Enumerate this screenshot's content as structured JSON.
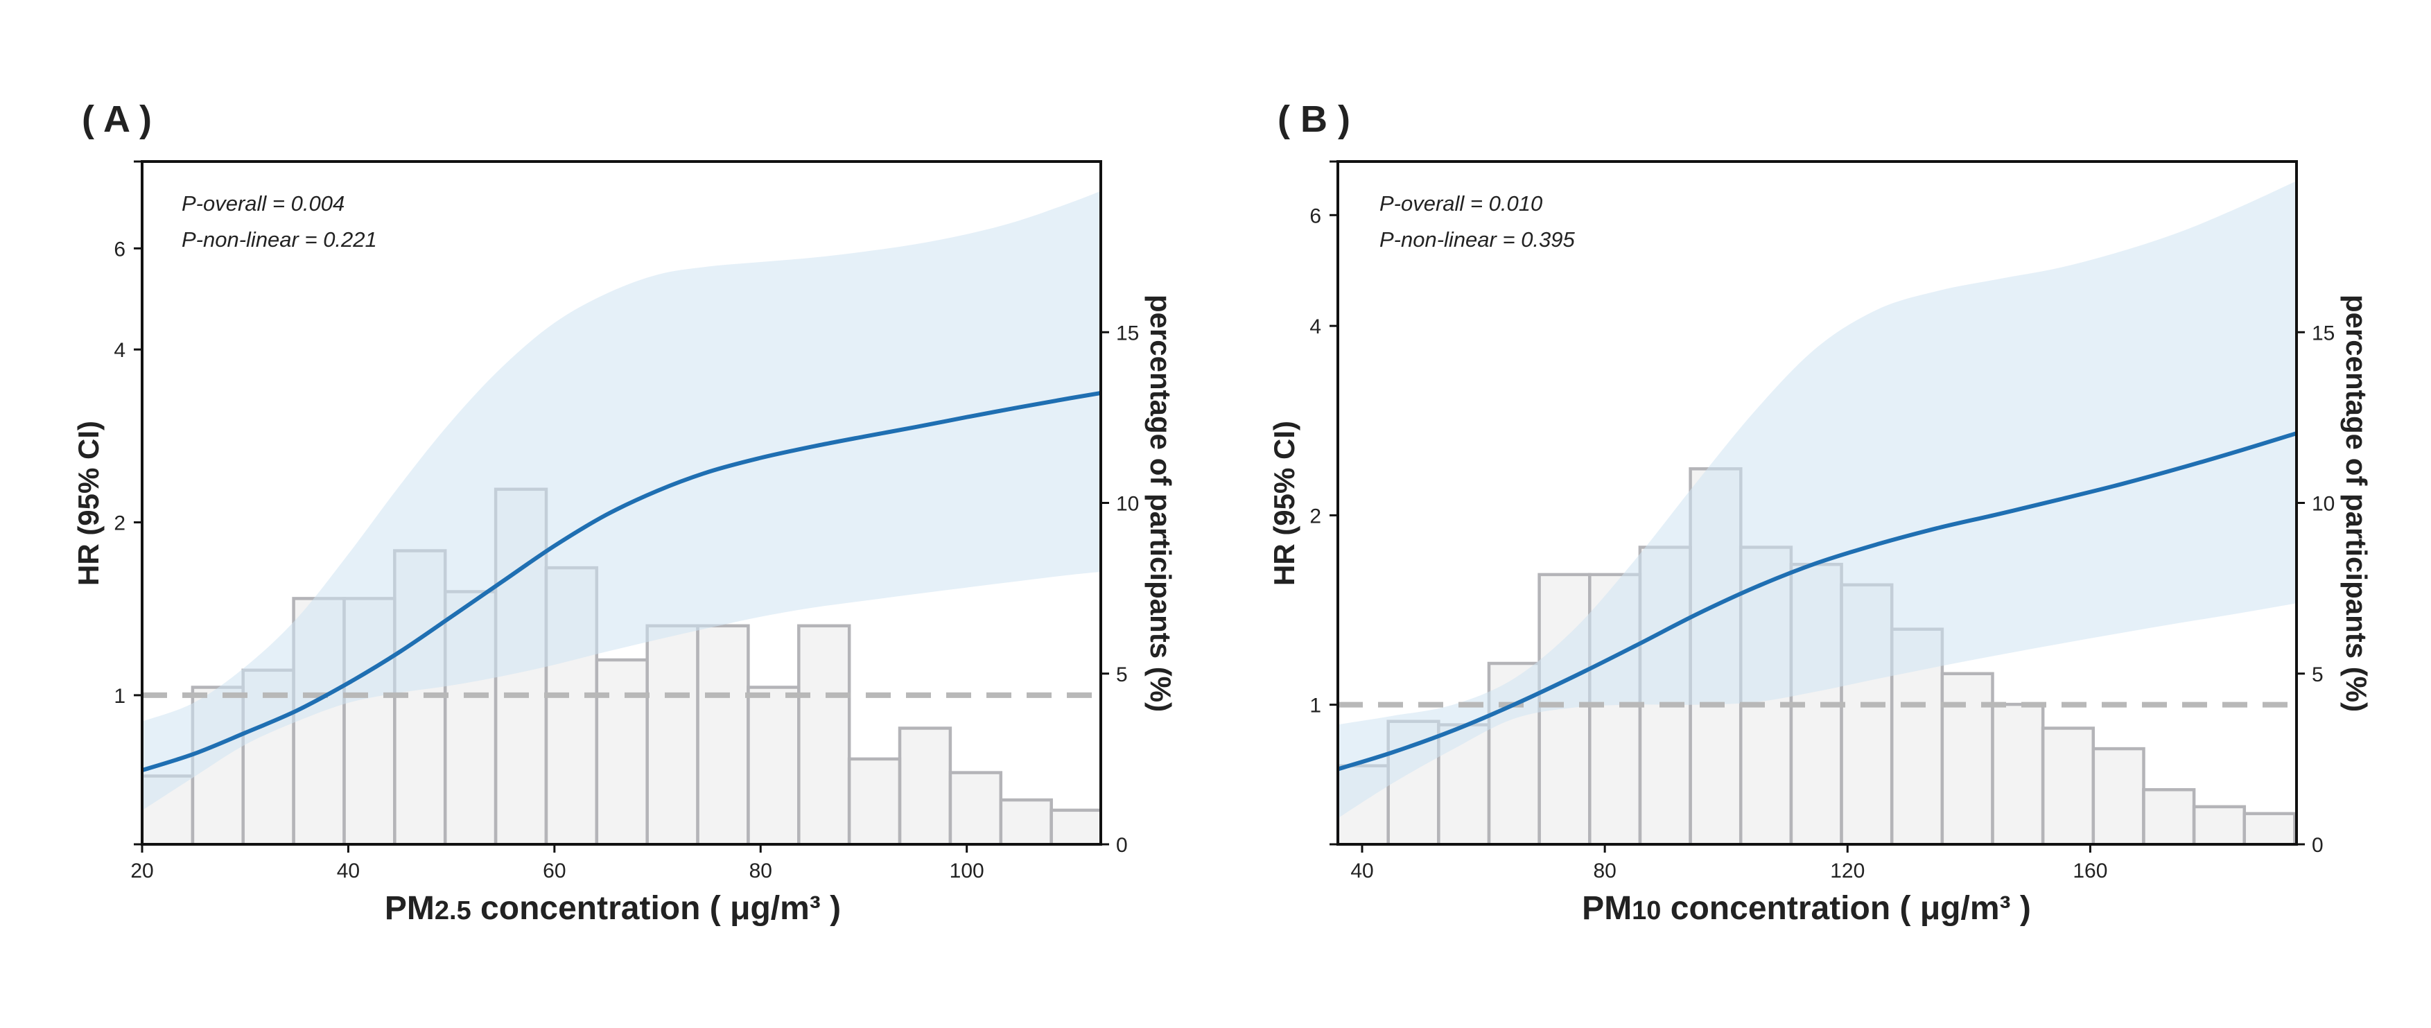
{
  "chart_data": [
    {
      "type": "line",
      "panel_label": "( A )",
      "title": "",
      "xlabel": {
        "main": "PM",
        "sub": "2.5",
        "rest": " concentration ( μg/m³ )"
      },
      "ylabel": "HR (95% CI)",
      "y2label": "percentage of participants (%)",
      "annotations": [
        "P-overall = 0.004",
        "P-non-linear = 0.221"
      ],
      "xlim": [
        20,
        113
      ],
      "ylim_log": [
        0.55,
        8.5
      ],
      "y2lim": [
        0,
        20
      ],
      "xticks": [
        20,
        40,
        60,
        80,
        100
      ],
      "yticks": [
        1,
        2,
        4,
        6
      ],
      "y2ticks": [
        0,
        5,
        10,
        15
      ],
      "reference_hr": 1,
      "histogram": {
        "bin_start": 20,
        "bin_width": 4.9,
        "percent": [
          2.0,
          4.6,
          5.1,
          7.2,
          7.2,
          8.6,
          7.4,
          10.4,
          8.1,
          5.4,
          6.4,
          6.4,
          4.6,
          6.4,
          2.5,
          3.4,
          2.1,
          1.3,
          1.0
        ]
      },
      "spline": {
        "x": [
          20,
          25,
          30,
          35,
          40,
          45,
          50,
          55,
          60,
          65,
          70,
          75,
          80,
          85,
          90,
          95,
          100,
          105,
          110,
          113
        ],
        "hr": [
          0.74,
          0.79,
          0.86,
          0.94,
          1.05,
          1.19,
          1.37,
          1.58,
          1.82,
          2.06,
          2.27,
          2.45,
          2.59,
          2.71,
          2.82,
          2.93,
          3.05,
          3.17,
          3.29,
          3.36
        ],
        "lower": [
          0.63,
          0.72,
          0.82,
          0.9,
          0.97,
          1.01,
          1.04,
          1.08,
          1.13,
          1.19,
          1.25,
          1.31,
          1.37,
          1.42,
          1.46,
          1.5,
          1.54,
          1.58,
          1.62,
          1.64
        ],
        "upper": [
          0.9,
          0.97,
          1.12,
          1.36,
          1.76,
          2.32,
          3.0,
          3.74,
          4.45,
          5.0,
          5.4,
          5.58,
          5.68,
          5.78,
          5.92,
          6.1,
          6.35,
          6.7,
          7.2,
          7.55
        ]
      }
    },
    {
      "type": "line",
      "panel_label": "( B )",
      "title": "",
      "xlabel": {
        "main": "PM",
        "sub": "10",
        "rest": " concentration ( μg/m³ )"
      },
      "ylabel": "HR (95% CI)",
      "y2label": "percentage of participants (%)",
      "annotations": [
        "P-overall = 0.010",
        "P-non-linear = 0.395"
      ],
      "xlim": [
        36,
        194
      ],
      "ylim_log": [
        0.6,
        7.3
      ],
      "y2lim": [
        0,
        20
      ],
      "xticks": [
        40,
        80,
        120,
        160
      ],
      "yticks": [
        1,
        2,
        4,
        6
      ],
      "y2ticks": [
        0,
        5,
        10,
        15
      ],
      "reference_hr": 1,
      "histogram": {
        "bin_start": 36,
        "bin_width": 8.3,
        "percent": [
          2.3,
          3.6,
          3.5,
          5.3,
          7.9,
          7.9,
          8.7,
          11.0,
          8.7,
          8.2,
          7.6,
          6.3,
          5.0,
          4.1,
          3.4,
          2.8,
          1.6,
          1.1,
          0.9
        ]
      },
      "spline": {
        "x": [
          36,
          45,
          55,
          65,
          75,
          85,
          95,
          105,
          115,
          125,
          135,
          145,
          155,
          165,
          175,
          185,
          194
        ],
        "hr": [
          0.79,
          0.84,
          0.91,
          1.0,
          1.11,
          1.24,
          1.39,
          1.54,
          1.68,
          1.8,
          1.91,
          2.01,
          2.12,
          2.24,
          2.38,
          2.54,
          2.7
        ],
        "lower": [
          0.66,
          0.75,
          0.85,
          0.95,
          0.99,
          1.0,
          1.0,
          1.01,
          1.05,
          1.1,
          1.15,
          1.2,
          1.25,
          1.3,
          1.35,
          1.4,
          1.45
        ],
        "upper": [
          0.93,
          0.96,
          1.0,
          1.1,
          1.32,
          1.7,
          2.25,
          2.95,
          3.7,
          4.25,
          4.55,
          4.75,
          4.95,
          5.25,
          5.65,
          6.2,
          6.8
        ]
      }
    }
  ]
}
